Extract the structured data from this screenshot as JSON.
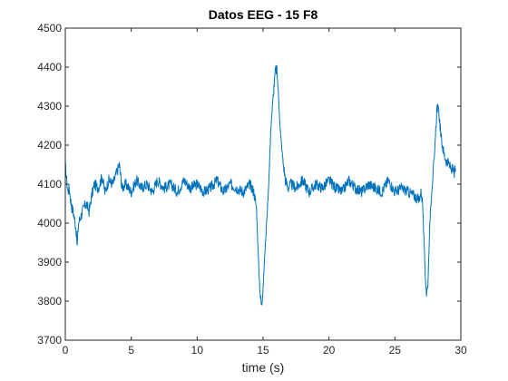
{
  "chart_data": {
    "type": "line",
    "title": "Datos EEG - 15 F8",
    "xlabel": "time (s)",
    "ylabel": "",
    "xlim": [
      0,
      30
    ],
    "ylim": [
      3700,
      4500
    ],
    "x_ticks": [
      0,
      5,
      10,
      15,
      20,
      25,
      30
    ],
    "y_ticks": [
      3700,
      3800,
      3900,
      4000,
      4100,
      4200,
      4300,
      4400,
      4500
    ],
    "x_tick_labels": [
      "0",
      "5",
      "10",
      "15",
      "20",
      "25",
      "30"
    ],
    "y_tick_labels": [
      "3700",
      "3800",
      "3900",
      "4000",
      "4100",
      "4200",
      "4300",
      "4400",
      "4500"
    ],
    "grid": false,
    "legend": "none",
    "series": [
      {
        "color": "#0072bd",
        "x": [
          0,
          0.1,
          0.2,
          0.3,
          0.4,
          0.5,
          0.6,
          0.7,
          0.8,
          0.9,
          1.0,
          1.2,
          1.4,
          1.6,
          1.8,
          2.0,
          2.2,
          2.5,
          2.8,
          3.0,
          3.3,
          3.6,
          3.9,
          4.1,
          4.3,
          4.6,
          5.0,
          5.4,
          5.8,
          6.2,
          6.6,
          7.0,
          7.5,
          8.0,
          8.5,
          9.0,
          9.5,
          10.0,
          10.5,
          11.0,
          11.5,
          12.0,
          12.5,
          13.0,
          13.5,
          14.0,
          14.3,
          14.5,
          14.6,
          14.7,
          14.8,
          14.9,
          15.0,
          15.2,
          15.4,
          15.6,
          15.8,
          15.95,
          16.05,
          16.15,
          16.3,
          16.5,
          16.7,
          16.9,
          17.1,
          17.5,
          18.0,
          18.5,
          19.0,
          19.5,
          20.0,
          20.5,
          21.0,
          21.5,
          22.0,
          22.5,
          23.0,
          23.5,
          24.0,
          24.5,
          25.0,
          25.5,
          26.0,
          26.5,
          26.8,
          27.0,
          27.1,
          27.2,
          27.3,
          27.4,
          27.5,
          27.6,
          27.7,
          27.8,
          27.9,
          28.0,
          28.1,
          28.2,
          28.35,
          28.5,
          28.7,
          28.9,
          29.1,
          29.3,
          29.5,
          29.6
        ],
        "y": [
          4150,
          4110,
          4080,
          4090,
          4060,
          4040,
          4030,
          4010,
          3990,
          3940,
          4000,
          4020,
          4040,
          4050,
          4030,
          4070,
          4100,
          4090,
          4120,
          4080,
          4110,
          4100,
          4130,
          4150,
          4090,
          4100,
          4080,
          4110,
          4090,
          4100,
          4080,
          4110,
          4090,
          4100,
          4080,
          4110,
          4090,
          4100,
          4080,
          4090,
          4110,
          4080,
          4100,
          4090,
          4080,
          4100,
          4080,
          4040,
          3950,
          3870,
          3810,
          3785,
          3840,
          3960,
          4080,
          4250,
          4340,
          4395,
          4390,
          4340,
          4240,
          4160,
          4110,
          4090,
          4100,
          4090,
          4110,
          4080,
          4100,
          4090,
          4110,
          4090,
          4080,
          4110,
          4090,
          4080,
          4100,
          4090,
          4080,
          4110,
          4080,
          4090,
          4080,
          4070,
          4060,
          4080,
          4050,
          3960,
          3870,
          3820,
          3840,
          3950,
          4040,
          4090,
          4130,
          4170,
          4240,
          4300,
          4280,
          4220,
          4180,
          4160,
          4150,
          4140,
          4130,
          4140
        ]
      }
    ]
  }
}
